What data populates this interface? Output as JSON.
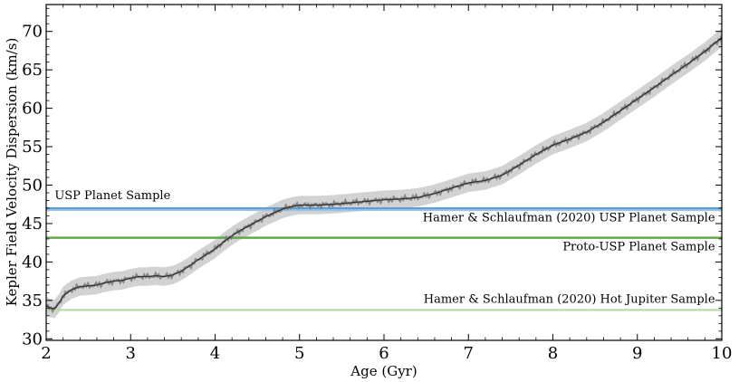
{
  "chart_data": {
    "type": "line",
    "xlabel": "Age (Gyr)",
    "ylabel": "Kepler Field Velocity Dispersion (km/s)",
    "xlim": [
      2,
      10
    ],
    "ylim": [
      29.8,
      73.5
    ],
    "xticks": [
      2,
      3,
      4,
      5,
      6,
      7,
      8,
      9,
      10
    ],
    "yticks": [
      30,
      35,
      40,
      45,
      50,
      55,
      60,
      65,
      70
    ],
    "xtick_labels": [
      "2",
      "3",
      "4",
      "5",
      "6",
      "7",
      "8",
      "9",
      "10"
    ],
    "ytick_labels": [
      "30",
      "35",
      "40",
      "45",
      "50",
      "55",
      "60",
      "65",
      "70"
    ],
    "grid": false,
    "curve": {
      "x": [
        2.0,
        2.05,
        2.1,
        2.15,
        2.2,
        2.3,
        2.4,
        2.5,
        2.6,
        2.7,
        2.8,
        2.9,
        3.0,
        3.1,
        3.2,
        3.3,
        3.4,
        3.5,
        3.6,
        3.7,
        3.8,
        3.9,
        4.0,
        4.1,
        4.2,
        4.3,
        4.4,
        4.5,
        4.6,
        4.7,
        4.8,
        4.9,
        5.0,
        5.2,
        5.4,
        5.6,
        5.8,
        6.0,
        6.2,
        6.4,
        6.6,
        6.8,
        7.0,
        7.2,
        7.4,
        7.6,
        7.8,
        8.0,
        8.2,
        8.4,
        8.6,
        8.8,
        9.0,
        9.2,
        9.4,
        9.6,
        9.8,
        10.0
      ],
      "y": [
        34.3,
        34.0,
        33.9,
        34.6,
        35.6,
        36.4,
        36.8,
        36.9,
        37.0,
        37.3,
        37.5,
        37.6,
        37.9,
        38.1,
        38.1,
        38.2,
        38.1,
        38.3,
        38.8,
        39.5,
        40.3,
        41.0,
        41.7,
        42.6,
        43.4,
        44.1,
        44.7,
        45.3,
        45.9,
        46.4,
        46.9,
        47.2,
        47.4,
        47.4,
        47.5,
        47.7,
        47.9,
        48.1,
        48.2,
        48.4,
        48.9,
        49.6,
        50.3,
        50.6,
        51.3,
        52.6,
        54.0,
        55.2,
        56.0,
        56.9,
        58.2,
        59.7,
        61.2,
        62.7,
        64.3,
        65.8,
        67.4,
        69.2
      ],
      "band_halfwidth": 1.2,
      "band_color": "#d2d2d2",
      "line_color": "#333333",
      "noise_color": "#7a7a7a"
    },
    "hlines": [
      {
        "y": 46.95,
        "color": "#5b9fd8",
        "width_units": 0.32
      },
      {
        "y": 46.75,
        "color": "#9cc3e6",
        "width_units": 0.22
      },
      {
        "y": 43.15,
        "color": "#63a84a",
        "width_units": 0.3
      },
      {
        "y": 33.75,
        "color": "#b5dba0",
        "width_units": 0.25
      }
    ],
    "annotations": [
      {
        "text": "USP Planet Sample",
        "x": 2.1,
        "y": 48.2,
        "anchor": "start"
      },
      {
        "text": "Hamer & Schlaufman (2020) USP Planet Sample",
        "x": 9.92,
        "y": 45.3,
        "anchor": "end"
      },
      {
        "text": "Proto-USP Planet Sample",
        "x": 9.92,
        "y": 41.5,
        "anchor": "end"
      },
      {
        "text": "Hamer & Schlaufman (2020) Hot Jupiter Sample",
        "x": 9.92,
        "y": 34.7,
        "anchor": "end"
      }
    ]
  }
}
